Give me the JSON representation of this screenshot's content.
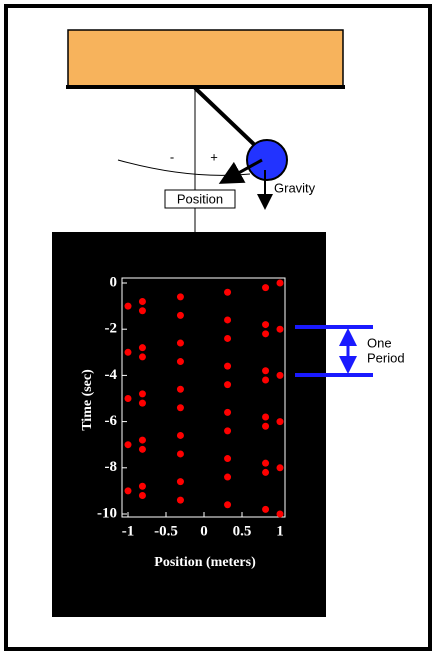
{
  "labels": {
    "minus": "-",
    "plus": "+",
    "gravity": "Gravity",
    "position": "Position",
    "period": [
      "One",
      "Period"
    ]
  },
  "chart_data": {
    "type": "scatter",
    "xlabel": "Position (meters)",
    "ylabel": "Time (sec)",
    "color": "#ff0000",
    "xlim": [
      -1,
      1
    ],
    "ylim": [
      -10,
      0
    ],
    "xticks": [
      -1,
      -0.5,
      0,
      0.5,
      1
    ],
    "yticks": [
      0,
      -2,
      -4,
      -6,
      -8,
      -10
    ],
    "x": [
      1,
      0.81,
      0.31,
      -0.31,
      -0.81,
      -1,
      -0.81,
      -0.31,
      0.31,
      0.81,
      1,
      0.81,
      0.31,
      -0.31,
      -0.81,
      -1,
      -0.81,
      -0.31,
      0.31,
      0.81,
      1,
      0.81,
      0.31,
      -0.31,
      -0.81,
      -1,
      -0.81,
      -0.31,
      0.31,
      0.81,
      1,
      0.81,
      0.31,
      -0.31,
      -0.81,
      -1,
      -0.81,
      -0.31,
      0.31,
      0.81,
      1,
      0.81,
      0.31,
      -0.31,
      -0.81,
      -1,
      -0.81,
      -0.31,
      0.31,
      0.81,
      1
    ],
    "y": [
      0,
      -0.2,
      -0.4,
      -0.6,
      -0.8,
      -1,
      -1.2,
      -1.4,
      -1.6,
      -1.8,
      -2,
      -2.2,
      -2.4,
      -2.6,
      -2.8,
      -3,
      -3.2,
      -3.4,
      -3.6,
      -3.8,
      -4,
      -4.2,
      -4.4,
      -4.6,
      -4.8,
      -5,
      -5.2,
      -5.4,
      -5.6,
      -5.8,
      -6,
      -6.2,
      -6.4,
      -6.6,
      -6.8,
      -7,
      -7.2,
      -7.4,
      -7.6,
      -7.8,
      -8,
      -8.2,
      -8.4,
      -8.6,
      -8.8,
      -9,
      -9.2,
      -9.4,
      -9.6,
      -9.8,
      -10
    ]
  }
}
